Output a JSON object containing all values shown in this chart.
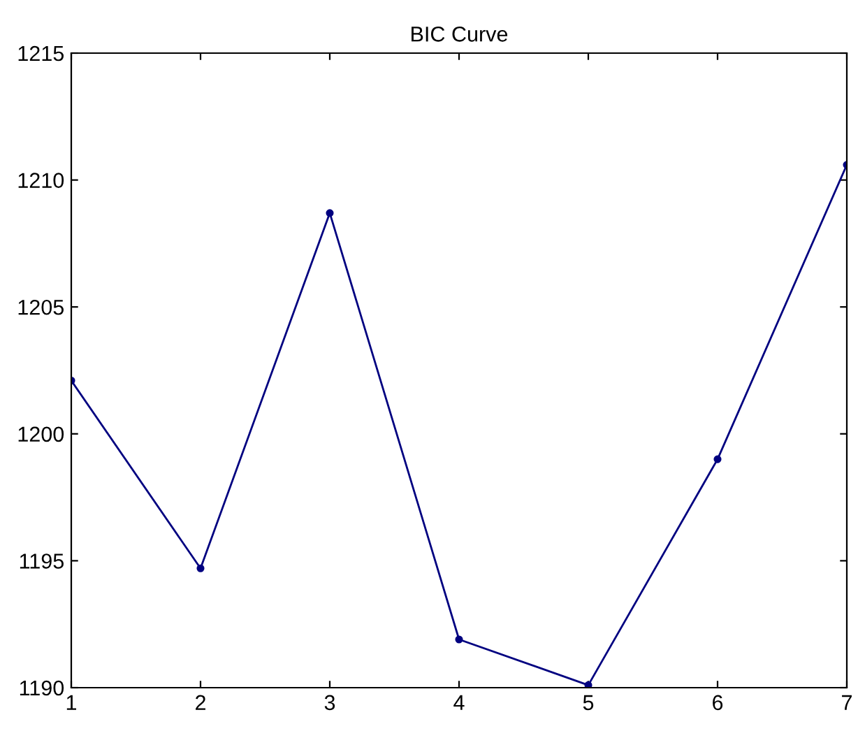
{
  "chart_data": {
    "type": "line",
    "title": "BIC Curve",
    "x": [
      1,
      2,
      3,
      4,
      5,
      6,
      7
    ],
    "series": [
      {
        "color": "#000080",
        "values": [
          1202.1,
          1194.7,
          1208.7,
          1191.9,
          1190.1,
          1199.0,
          1210.6
        ]
      }
    ],
    "xlim": [
      1,
      7
    ],
    "xticks": [
      1,
      2,
      3,
      4,
      5,
      6,
      7
    ],
    "ylim": [
      1190,
      1215
    ],
    "yticks": [
      1190,
      1195,
      1200,
      1205,
      1210,
      1215
    ],
    "marker": "circle",
    "line_style": "solid",
    "grid": false,
    "legend": false
  }
}
